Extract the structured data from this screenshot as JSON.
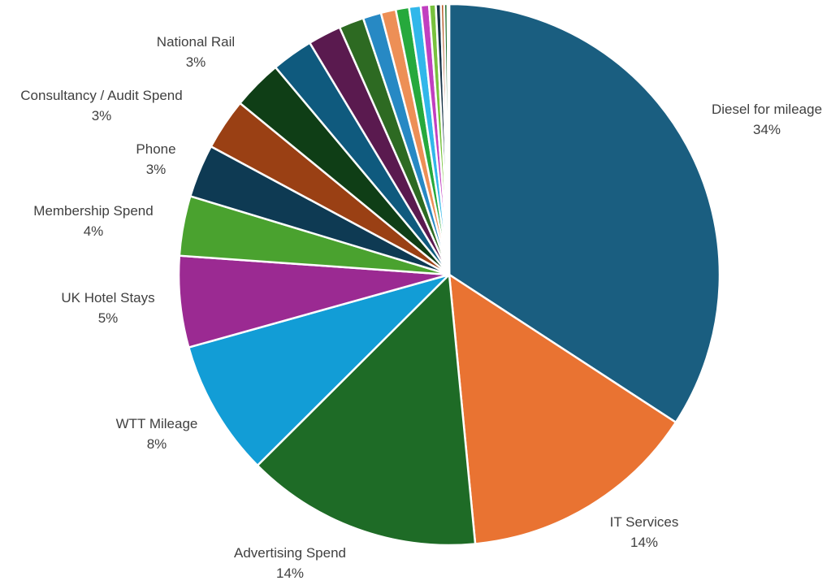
{
  "chart_data": {
    "type": "pie",
    "slices": [
      {
        "label": "Diesel for mileage",
        "pct_label": "34%",
        "value": 34.5,
        "color": "#1a5e80"
      },
      {
        "label": "IT Services",
        "pct_label": "14%",
        "value": 14.4,
        "color": "#e97332"
      },
      {
        "label": "Advertising Spend",
        "pct_label": "14%",
        "value": 14.2,
        "color": "#1e6b26"
      },
      {
        "label": "WTT Mileage",
        "pct_label": "8%",
        "value": 8.2,
        "color": "#129dd6"
      },
      {
        "label": "UK Hotel Stays",
        "pct_label": "5%",
        "value": 5.5,
        "color": "#9b2a92"
      },
      {
        "label": "Membership Spend",
        "pct_label": "4%",
        "value": 3.6,
        "color": "#4aa22f"
      },
      {
        "label": "Phone",
        "pct_label": "3%",
        "value": 3.2,
        "color": "#0e3a53"
      },
      {
        "label": "Consultancy / Audit Spend",
        "pct_label": "3%",
        "value": 3.1,
        "color": "#9a4014"
      },
      {
        "label": "National Rail",
        "pct_label": "3%",
        "value": 3.0,
        "color": "#0f3e16"
      },
      {
        "label": "",
        "pct_label": "",
        "value": 2.5,
        "color": "#0f5a7e"
      },
      {
        "label": "",
        "pct_label": "",
        "value": 2.0,
        "color": "#5a1a4f"
      },
      {
        "label": "",
        "pct_label": "",
        "value": 1.5,
        "color": "#2d6a22"
      },
      {
        "label": "",
        "pct_label": "",
        "value": 1.1,
        "color": "#2789c4"
      },
      {
        "label": "",
        "pct_label": "",
        "value": 0.9,
        "color": "#ed8f56"
      },
      {
        "label": "",
        "pct_label": "",
        "value": 0.8,
        "color": "#26a93c"
      },
      {
        "label": "",
        "pct_label": "",
        "value": 0.7,
        "color": "#31b7ea"
      },
      {
        "label": "",
        "pct_label": "",
        "value": 0.5,
        "color": "#c13fc0"
      },
      {
        "label": "",
        "pct_label": "",
        "value": 0.4,
        "color": "#78c23d"
      },
      {
        "label": "",
        "pct_label": "",
        "value": 0.3,
        "color": "#153246"
      },
      {
        "label": "",
        "pct_label": "",
        "value": 0.2,
        "color": "#b65522"
      },
      {
        "label": "",
        "pct_label": "",
        "value": 0.2,
        "color": "#1a6b2a"
      },
      {
        "label": "",
        "pct_label": "",
        "value": 0.1,
        "color": "#cccccc"
      }
    ],
    "legend": "none",
    "start_angle_deg": 0,
    "direction": "clockwise"
  }
}
